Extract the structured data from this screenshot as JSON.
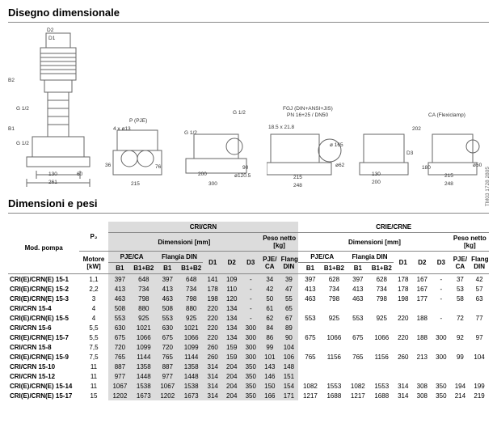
{
  "section1_title": "Disegno dimensionale",
  "section2_title": "Dimensioni e pesi",
  "side_ref": "TM03 1728 2805",
  "drawing_labels": {
    "d1": "D1",
    "d2": "D2",
    "b2": "B2",
    "g12a": "G 1/2",
    "g12b": "G 1/2",
    "g12c": "G 1/2",
    "g12d": "G 1/2",
    "b1": "B1",
    "holes": "4 x ø13",
    "p_pje": "P (PJE)",
    "fgj": "FGJ (DIN+ANSI+JIS)",
    "fgj2": "PN 16+25 / DN50",
    "ca_flex": "CA (Flexiclamp)",
    "w130": "130",
    "w200": "200",
    "w261": "261",
    "w215": "215",
    "h36": "36",
    "w300": "300",
    "d1205": "ø120.5",
    "w18521": "18.5 x 21.8",
    "d165": "ø 165",
    "w248": "248",
    "d50": "ø50",
    "ninety": "90",
    "d62": "ø62",
    "twenty2": "202",
    "sixty": "60",
    "seventysix": "76",
    "one80": "180",
    "dD3": "D3"
  },
  "headers": {
    "mod": "Mod. pompa",
    "p2": "P₂",
    "p2_unit": "Motore",
    "p2_unit2": "[kW]",
    "cri_crn": "CRI/CRN",
    "crie_crne": "CRIE/CRNE",
    "dim_mm": "Dimensioni  [mm]",
    "peso": "Peso netto",
    "peso_unit": "[kg]",
    "pje_ca": "PJE/CA",
    "flangia": "Flangia DIN",
    "b1": "B1",
    "b1b2": "B1+B2",
    "d1": "D1",
    "d2": "D2",
    "d3": "D3",
    "pje_ca2": "PJE/",
    "pje_ca3": "CA",
    "flangia2": "Flangia",
    "flangia3": "DIN"
  },
  "rows": [
    {
      "m": "CRI(E)/CRN(E) 15-1",
      "p": "1,1",
      "a": [
        "397",
        "648",
        "397",
        "648",
        "141",
        "109",
        "-",
        "34",
        "39"
      ],
      "b": [
        "397",
        "628",
        "397",
        "628",
        "178",
        "167",
        "-",
        "37",
        "42"
      ]
    },
    {
      "m": "CRI(E)/CRN(E) 15-2",
      "p": "2,2",
      "a": [
        "413",
        "734",
        "413",
        "734",
        "178",
        "110",
        "-",
        "42",
        "47"
      ],
      "b": [
        "413",
        "734",
        "413",
        "734",
        "178",
        "167",
        "-",
        "53",
        "57"
      ]
    },
    {
      "m": "CRI(E)/CRN(E) 15-3",
      "p": "3",
      "a": [
        "463",
        "798",
        "463",
        "798",
        "198",
        "120",
        "-",
        "50",
        "55"
      ],
      "b": [
        "463",
        "798",
        "463",
        "798",
        "198",
        "177",
        "-",
        "58",
        "63"
      ]
    },
    {
      "m": "CRI/CRN 15-4",
      "p": "4",
      "a": [
        "508",
        "880",
        "508",
        "880",
        "220",
        "134",
        "-",
        "61",
        "65"
      ],
      "b": [
        "",
        "",
        "",
        "",
        "",
        "",
        "",
        "",
        ""
      ]
    },
    {
      "m": "CRI(E)/CRN(E) 15-5",
      "p": "4",
      "a": [
        "553",
        "925",
        "553",
        "925",
        "220",
        "134",
        "-",
        "62",
        "67"
      ],
      "b": [
        "553",
        "925",
        "553",
        "925",
        "220",
        "188",
        "-",
        "72",
        "77"
      ]
    },
    {
      "m": "CRI/CRN 15-6",
      "p": "5,5",
      "a": [
        "630",
        "1021",
        "630",
        "1021",
        "220",
        "134",
        "300",
        "84",
        "89"
      ],
      "b": [
        "",
        "",
        "",
        "",
        "",
        "",
        "",
        "",
        ""
      ]
    },
    {
      "m": "CRI(E)/CRN(E) 15-7",
      "p": "5,5",
      "a": [
        "675",
        "1066",
        "675",
        "1066",
        "220",
        "134",
        "300",
        "86",
        "90"
      ],
      "b": [
        "675",
        "1066",
        "675",
        "1066",
        "220",
        "188",
        "300",
        "92",
        "97"
      ]
    },
    {
      "m": "CRI/CRN 15-8",
      "p": "7,5",
      "a": [
        "720",
        "1099",
        "720",
        "1099",
        "260",
        "159",
        "300",
        "99",
        "104"
      ],
      "b": [
        "",
        "",
        "",
        "",
        "",
        "",
        "",
        "",
        ""
      ]
    },
    {
      "m": "CRI(E)/CRN(E) 15-9",
      "p": "7,5",
      "a": [
        "765",
        "1144",
        "765",
        "1144",
        "260",
        "159",
        "300",
        "101",
        "106"
      ],
      "b": [
        "765",
        "1156",
        "765",
        "1156",
        "260",
        "213",
        "300",
        "99",
        "104"
      ]
    },
    {
      "m": "CRI/CRN 15-10",
      "p": "11",
      "a": [
        "887",
        "1358",
        "887",
        "1358",
        "314",
        "204",
        "350",
        "143",
        "148"
      ],
      "b": [
        "",
        "",
        "",
        "",
        "",
        "",
        "",
        "",
        ""
      ]
    },
    {
      "m": "CRI/CRN 15-12",
      "p": "11",
      "a": [
        "977",
        "1448",
        "977",
        "1448",
        "314",
        "204",
        "350",
        "146",
        "151"
      ],
      "b": [
        "",
        "",
        "",
        "",
        "",
        "",
        "",
        "",
        ""
      ]
    },
    {
      "m": "CRI(E)/CRN(E) 15-14",
      "p": "11",
      "a": [
        "1067",
        "1538",
        "1067",
        "1538",
        "314",
        "204",
        "350",
        "150",
        "154"
      ],
      "b": [
        "1082",
        "1553",
        "1082",
        "1553",
        "314",
        "308",
        "350",
        "194",
        "199"
      ]
    },
    {
      "m": "CRI(E)/CRN(E) 15-17",
      "p": "15",
      "a": [
        "1202",
        "1673",
        "1202",
        "1673",
        "314",
        "204",
        "350",
        "166",
        "171"
      ],
      "b": [
        "1217",
        "1688",
        "1217",
        "1688",
        "314",
        "308",
        "350",
        "214",
        "219"
      ]
    }
  ],
  "style": {
    "bg": "#ffffff",
    "shade": "#dcdcdc",
    "line": "#888888",
    "text": "#000000",
    "font_size_body": 9,
    "font_size_title": 13,
    "font_size_table": 8,
    "font_size_label": 6.5
  }
}
